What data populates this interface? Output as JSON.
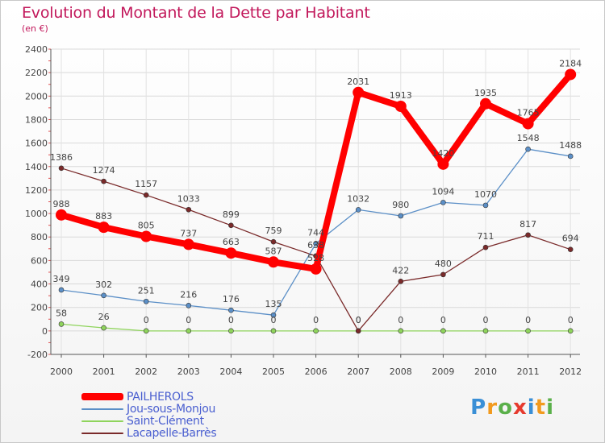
{
  "chart_data": {
    "type": "line",
    "title": "Evolution du Montant de la Dette par Habitant",
    "unit": "(en €)",
    "x": [
      "2000",
      "2001",
      "2002",
      "2003",
      "2004",
      "2005",
      "2006",
      "2007",
      "2008",
      "2009",
      "2010",
      "2011",
      "2012"
    ],
    "ylim": [
      -200,
      2400
    ],
    "yticks": [
      -200,
      0,
      200,
      400,
      600,
      800,
      1000,
      1200,
      1400,
      1600,
      1800,
      2000,
      2200,
      2400
    ],
    "grid": true,
    "legend_position": "bottom-left",
    "series": [
      {
        "name": "PAILHEROLS",
        "color": "#ff0000",
        "values": [
          988,
          883,
          805,
          737,
          663,
          587,
          528,
          2031,
          1913,
          1420,
          1935,
          1765,
          2184
        ]
      },
      {
        "name": "Jou-sous-Monjou",
        "color": "#5b8fc7",
        "values": [
          349,
          302,
          251,
          216,
          176,
          135,
          744,
          1032,
          980,
          1094,
          1070,
          1548,
          1488
        ]
      },
      {
        "name": "Saint-Clément",
        "color": "#8fd45c",
        "values": [
          58,
          26,
          0,
          0,
          0,
          0,
          0,
          0,
          0,
          0,
          0,
          0,
          0
        ]
      },
      {
        "name": "Lacapelle-Barrès",
        "color": "#7a2a2a",
        "values": [
          1386,
          1274,
          1157,
          1033,
          899,
          759,
          638,
          0,
          422,
          480,
          711,
          817,
          694
        ]
      }
    ]
  },
  "logo": {
    "p": "P",
    "r": "r",
    "o": "o",
    "x": "x",
    "i1": "i",
    "t": "t",
    "i2": "i"
  }
}
